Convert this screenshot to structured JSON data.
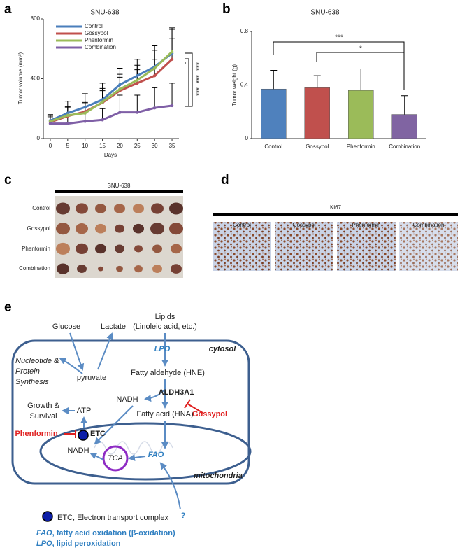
{
  "panel_labels": [
    "a",
    "b",
    "c",
    "d",
    "e"
  ],
  "chart_data": [
    {
      "type": "line",
      "title": "SNU-638",
      "x_label": "Days",
      "y_label": "Tumor volume (mm³)",
      "x": [
        0,
        5,
        10,
        15,
        20,
        25,
        30,
        35
      ],
      "xlim": [
        -2,
        37
      ],
      "xticks": [
        0,
        5,
        10,
        15,
        20,
        25,
        30,
        35
      ],
      "ylim": [
        0,
        800
      ],
      "yticks": [
        0,
        400,
        800
      ],
      "legend": "top-left",
      "series": [
        {
          "name": "Control",
          "color": "#4a7ebb",
          "values": [
            120,
            170,
            210,
            260,
            360,
            420,
            480,
            570
          ],
          "errors": [
            40,
            80,
            90,
            110,
            110,
            110,
            140,
            170
          ]
        },
        {
          "name": "Gossypol",
          "color": "#c0504d",
          "values": [
            110,
            150,
            180,
            240,
            320,
            370,
            420,
            530
          ],
          "errors": [
            30,
            60,
            70,
            80,
            90,
            90,
            110,
            140
          ]
        },
        {
          "name": "Phenformin",
          "color": "#9bbb59",
          "values": [
            115,
            155,
            170,
            245,
            330,
            390,
            470,
            580
          ],
          "errors": [
            35,
            60,
            70,
            90,
            100,
            100,
            120,
            150
          ]
        },
        {
          "name": "Combination",
          "color": "#7f5fa6",
          "values": [
            100,
            100,
            115,
            125,
            175,
            175,
            205,
            220
          ],
          "errors": [
            50,
            70,
            125,
            75,
            115,
            115,
            135,
            150
          ]
        }
      ],
      "annotations": [
        "***",
        "***",
        "***"
      ]
    },
    {
      "type": "bar",
      "title": "SNU-638",
      "y_label": "Tumor weight (g)",
      "categories": [
        "Control",
        "Gossypol",
        "Phenformin",
        "Combination"
      ],
      "values": [
        0.37,
        0.38,
        0.36,
        0.18
      ],
      "errors": [
        0.14,
        0.09,
        0.16,
        0.14
      ],
      "colors": [
        "#4f81bd",
        "#c0504d",
        "#9bbb59",
        "#8064a2"
      ],
      "ylim": [
        0,
        0.8
      ],
      "yticks": [
        0,
        0.4,
        0.8
      ],
      "annotations": [
        "***",
        "*"
      ]
    }
  ],
  "photos": {
    "title": "SNU-638",
    "rows": [
      "Control",
      "Gossypol",
      "Phenformin",
      "Combination"
    ]
  },
  "ihc": {
    "title": "Ki67",
    "columns": [
      "Control",
      "Gossypol",
      "Phenformin",
      "Combination"
    ]
  },
  "diagram": {
    "glucose": "Glucose",
    "lactate": "Lactate",
    "lipids": "Lipids",
    "lipids_sub": "(Linoleic acid, etc.)",
    "lpo": "LPO",
    "cytosol": "cytosol",
    "synthesis": [
      "Nucleotide &",
      "Protein",
      "Synthesis"
    ],
    "pyruvate": "pyruvate",
    "aldehyde": "Fatty aldehyde (HNE)",
    "aldh": "ALDH3A1",
    "nadh_cyto": "NADH",
    "gossypol": "Gossypol",
    "growth": [
      "Growth &",
      "Survival"
    ],
    "atp": "ATP",
    "fatty_acid": "Fatty acid (HNA)",
    "phenformin": "Phenformin",
    "etc": "ETC",
    "nadh_mito": "NADH",
    "tca": "TCA",
    "fao": "FAO",
    "mitochondria": "mitochondria",
    "unknown": "?",
    "legend": [
      {
        "text": "ETC, Electron transport complex"
      },
      {
        "term": "FAO",
        "text": ", fatty acid oxidation (β-oxidation)"
      },
      {
        "term": "LPO",
        "text": ", lipid peroxidation"
      }
    ]
  }
}
